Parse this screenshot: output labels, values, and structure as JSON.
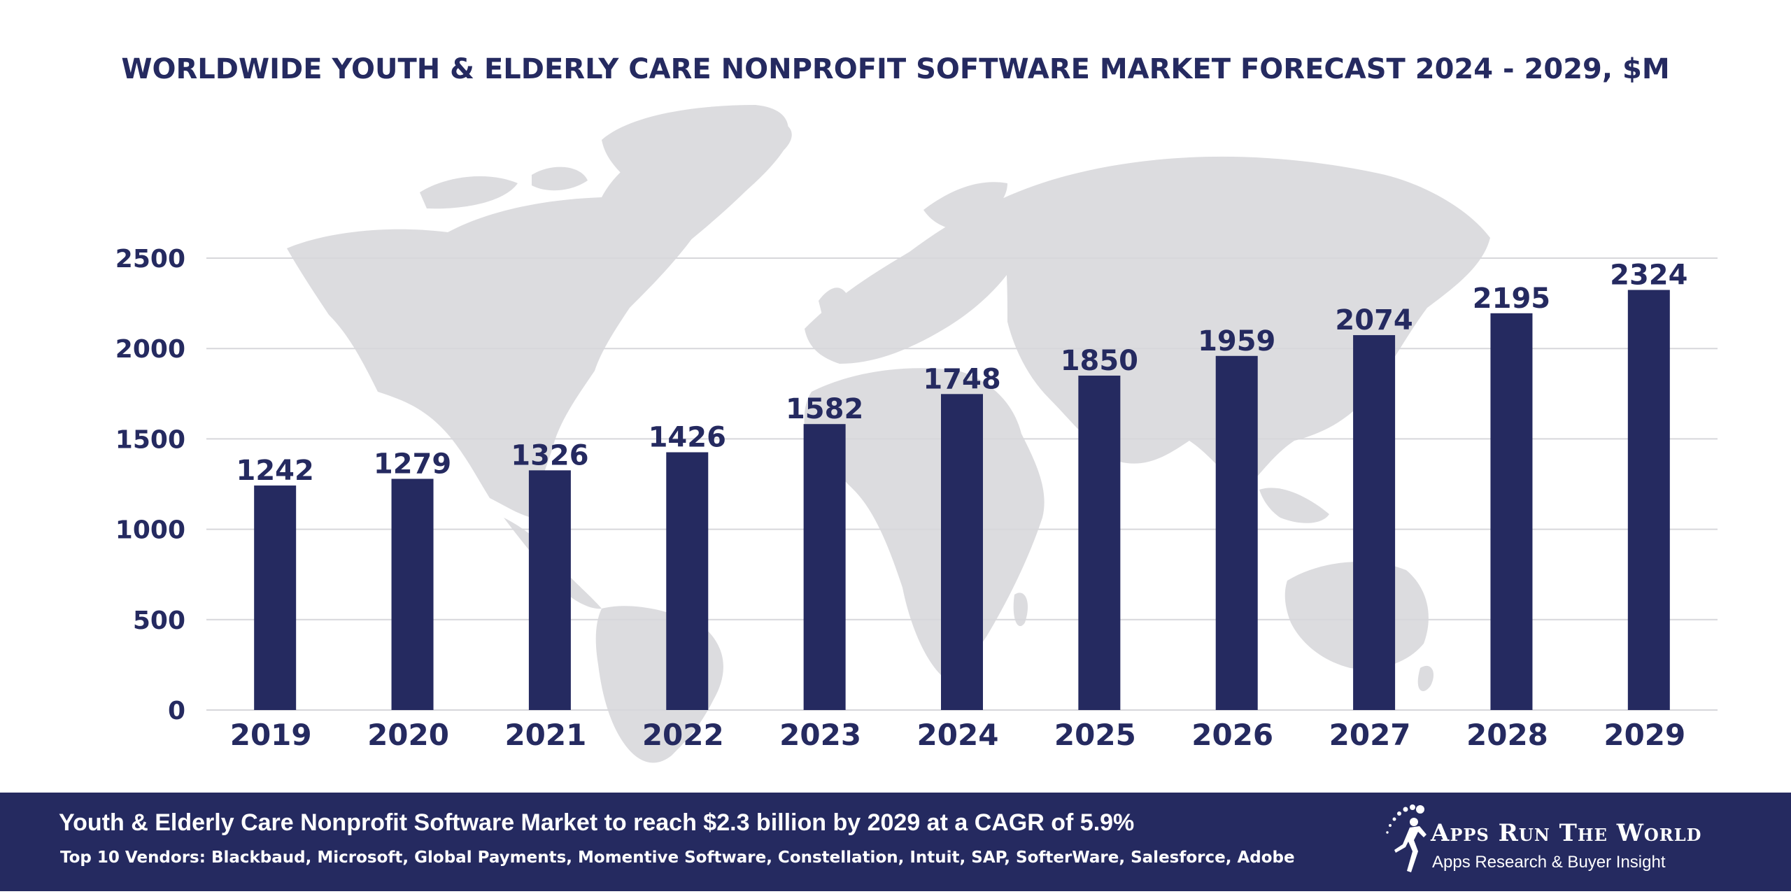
{
  "colors": {
    "bar": "#252a60",
    "text": "#252a60",
    "grid": "#d7d7db",
    "map": "#dcdcdf",
    "footer_bg": "#252a60",
    "footer_text": "#ffffff"
  },
  "chart_data": {
    "type": "bar",
    "title": "WORLDWIDE YOUTH & ELDERLY CARE NONPROFIT SOFTWARE MARKET FORECAST 2024 - 2029, $M",
    "categories": [
      "2019",
      "2020",
      "2021",
      "2022",
      "2023",
      "2024",
      "2025",
      "2026",
      "2027",
      "2028",
      "2029"
    ],
    "values": [
      1242,
      1279,
      1326,
      1426,
      1582,
      1748,
      1850,
      1959,
      2074,
      2195,
      2324
    ],
    "xlabel": "",
    "ylabel": "",
    "ylim": [
      0,
      2500
    ],
    "yticks": [
      "0",
      "500",
      "1000",
      "1500",
      "2000",
      "2500"
    ],
    "data_labels": true,
    "grid": true,
    "legend": "none",
    "background": "world-map"
  },
  "footer": {
    "headline": "Youth & Elderly Care Nonprofit Software Market to reach $2.3 billion by 2029 at a CAGR of 5.9%",
    "vendors": "Top 10 Vendors: Blackbaud, Microsoft, Global Payments, Momentive Software, Constellation, Intuit, SAP, SofterWare, Salesforce, Adobe",
    "brand_name": "Apps Run The World",
    "brand_tagline": "Apps Research & Buyer Insight",
    "brand_icon": "runner-logo-icon"
  }
}
